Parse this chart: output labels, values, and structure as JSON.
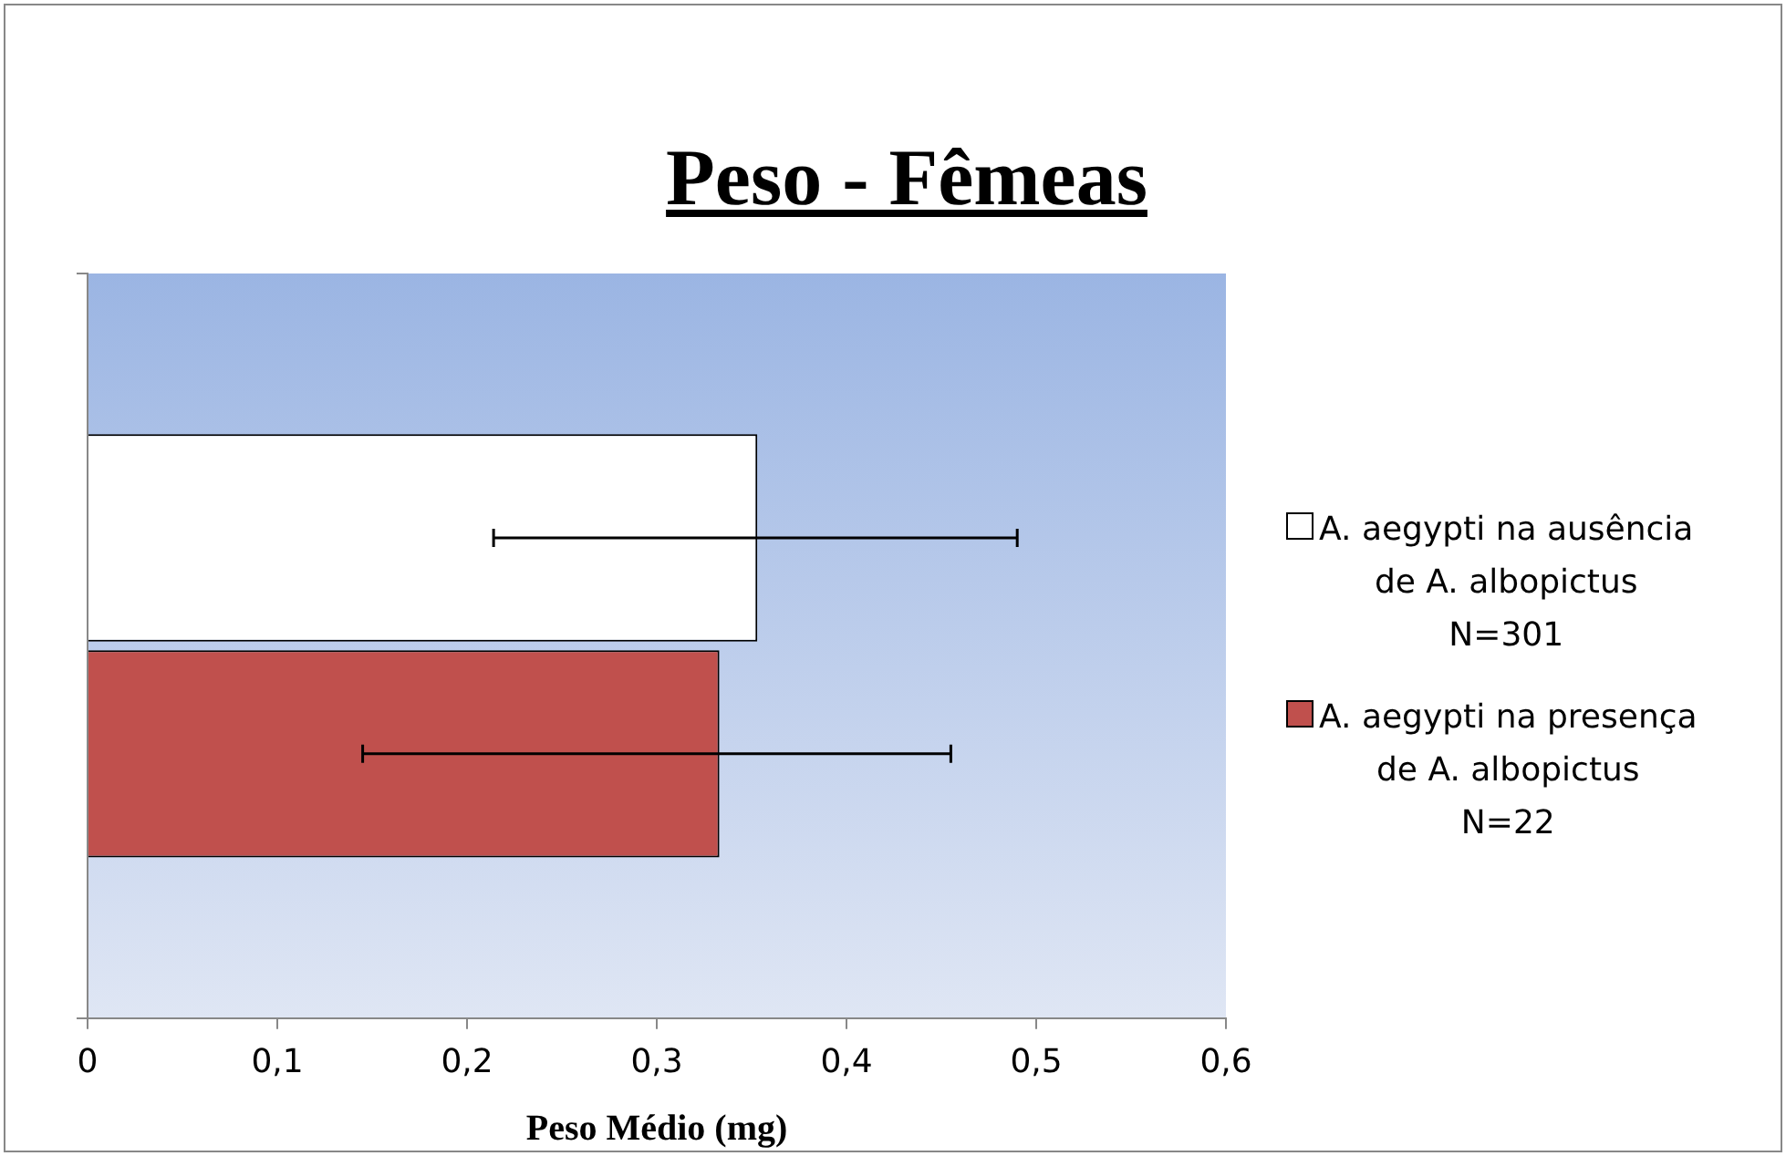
{
  "chart_data": {
    "type": "bar",
    "orientation": "horizontal",
    "title": "Peso - Fêmeas",
    "xlabel": "Peso Médio (mg)",
    "categories": [
      null
    ],
    "series": [
      {
        "name": "A. aegypti na ausência\nde A. albopictus\nN=301",
        "color": "#ffffff",
        "values": [
          0.353
        ],
        "errors": [
          [
            0.214,
            0.49
          ]
        ]
      },
      {
        "name": "A. aegypti na presença\nde A. albopictus\nN=22",
        "color": "#c0504d",
        "values": [
          0.333
        ],
        "errors": [
          [
            0.145,
            0.455
          ]
        ]
      }
    ],
    "xlim": [
      0,
      0.6
    ],
    "xticks": [
      {
        "value": 0,
        "label": "0"
      },
      {
        "value": 0.1,
        "label": "0,1"
      },
      {
        "value": 0.2,
        "label": "0,2"
      },
      {
        "value": 0.3,
        "label": "0,3"
      },
      {
        "value": 0.4,
        "label": "0,4"
      },
      {
        "value": 0.5,
        "label": "0,5"
      },
      {
        "value": 0.6,
        "label": "0,6"
      }
    ],
    "grid": false,
    "legend": "right"
  }
}
